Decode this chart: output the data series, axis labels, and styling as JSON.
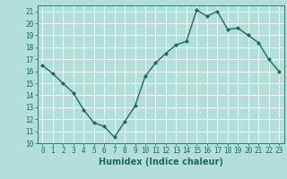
{
  "x": [
    0,
    1,
    2,
    3,
    4,
    5,
    6,
    7,
    8,
    9,
    10,
    11,
    12,
    13,
    14,
    15,
    16,
    17,
    18,
    19,
    20,
    21,
    22,
    23
  ],
  "y": [
    16.5,
    15.8,
    15.0,
    14.2,
    12.8,
    11.7,
    11.4,
    10.5,
    11.8,
    13.1,
    15.6,
    16.7,
    17.5,
    18.2,
    18.5,
    21.1,
    20.6,
    21.0,
    19.5,
    19.6,
    19.0,
    18.4,
    17.0,
    16.0
  ],
  "line_color": "#1a6b5e",
  "marker": "D",
  "marker_size": 2.0,
  "bg_color": "#b2e0d8",
  "grid_color": "#ffffff",
  "xlabel": "Humidex (Indice chaleur)",
  "ylim": [
    10,
    21.5
  ],
  "xlim": [
    -0.5,
    23.5
  ],
  "yticks": [
    10,
    11,
    12,
    13,
    14,
    15,
    16,
    17,
    18,
    19,
    20,
    21
  ],
  "xticks": [
    0,
    1,
    2,
    3,
    4,
    5,
    6,
    7,
    8,
    9,
    10,
    11,
    12,
    13,
    14,
    15,
    16,
    17,
    18,
    19,
    20,
    21,
    22,
    23
  ],
  "tick_fontsize": 5.5,
  "xlabel_fontsize": 7,
  "line_width": 1.0
}
